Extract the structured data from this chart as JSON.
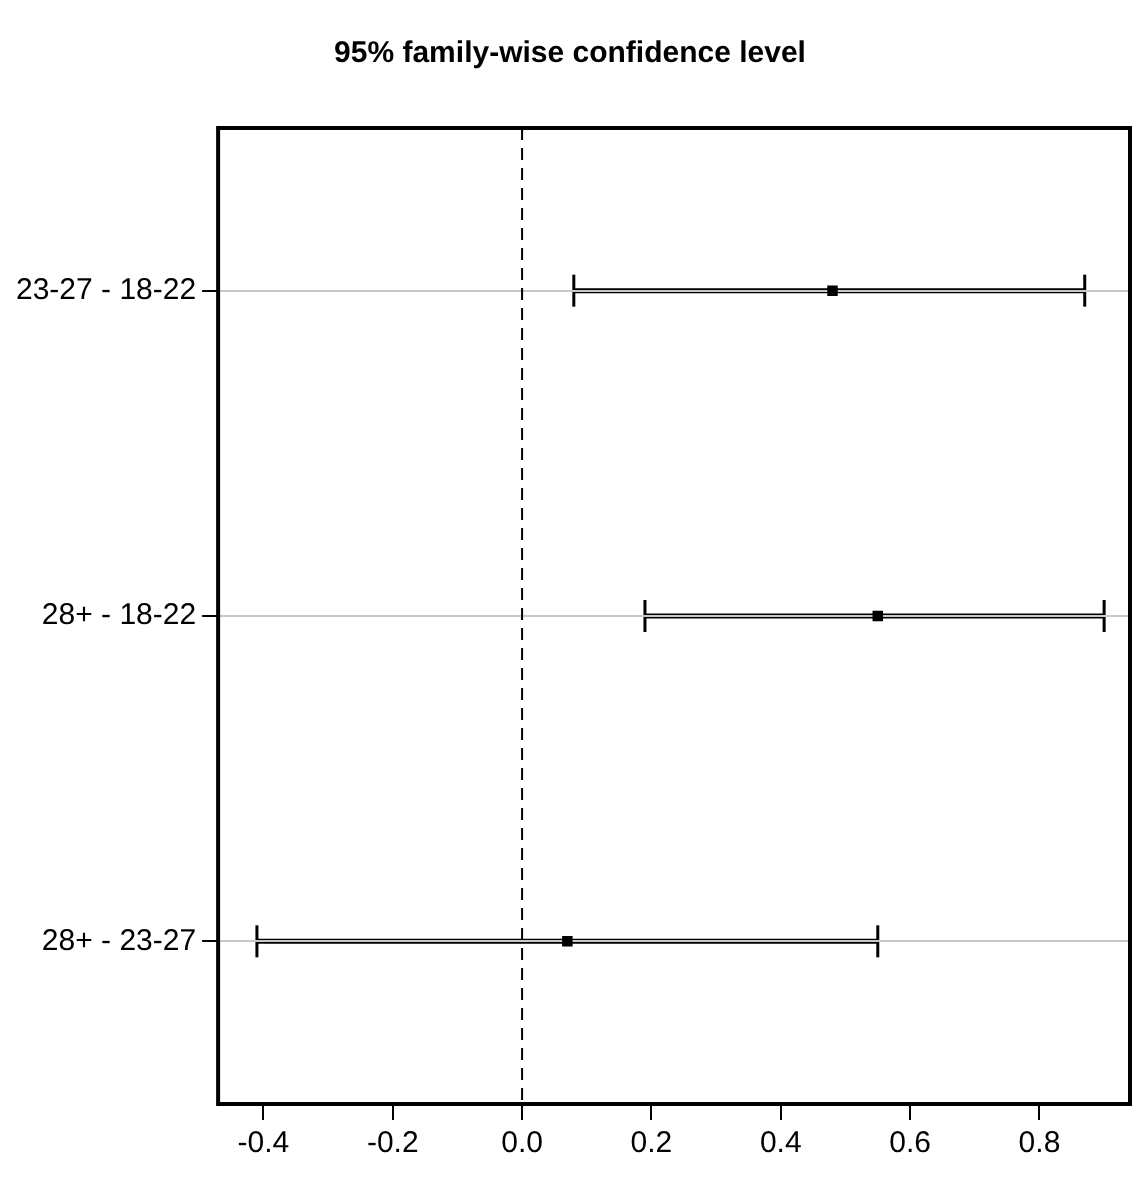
{
  "chart_data": {
    "type": "scatter",
    "title": "95% family-wise confidence level",
    "orientation": "horizontal",
    "categories": [
      "23-27 - 18-22",
      "28+ - 18-22",
      "28+ - 23-27"
    ],
    "values": [
      0.48,
      0.55,
      0.07
    ],
    "errors": [
      [
        0.08,
        0.87
      ],
      [
        0.19,
        0.9
      ],
      [
        -0.41,
        0.55
      ]
    ],
    "color": "#000000",
    "marker": "square",
    "xlim": [
      -0.47,
      0.94
    ],
    "xticks": [
      -0.4,
      -0.2,
      {
        "value": 0,
        "label": "0.0"
      },
      0.2,
      0.4,
      0.6,
      0.8
    ],
    "ref_lines": [
      {
        "axis": "x",
        "value": 0,
        "line_style": "dashed",
        "color": "#000000"
      }
    ],
    "grid": "y"
  }
}
